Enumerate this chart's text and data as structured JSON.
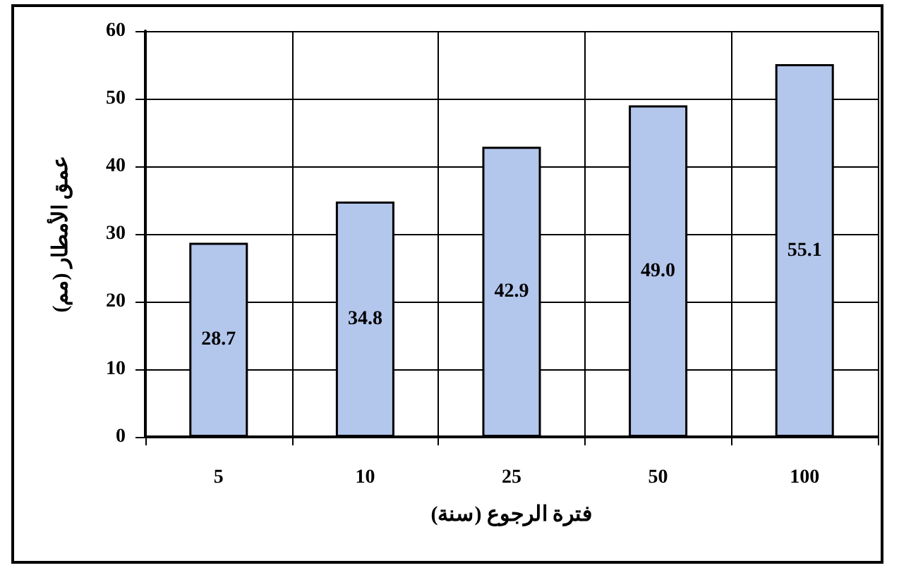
{
  "chart_data": {
    "type": "bar",
    "xlabel": "فترة الرجوع (سنة)",
    "ylabel": "عمق الأمطار (مم)",
    "categories": [
      "5",
      "10",
      "25",
      "50",
      "100"
    ],
    "values": [
      28.7,
      34.8,
      42.9,
      49.0,
      55.1
    ],
    "value_labels": [
      "28.7",
      "34.8",
      "42.9",
      "49.0",
      "55.1"
    ],
    "color": "#b3c6ec",
    "ylim": [
      0,
      60
    ],
    "yticks": [
      0,
      10,
      20,
      30,
      40,
      50,
      60
    ],
    "grid": true
  }
}
